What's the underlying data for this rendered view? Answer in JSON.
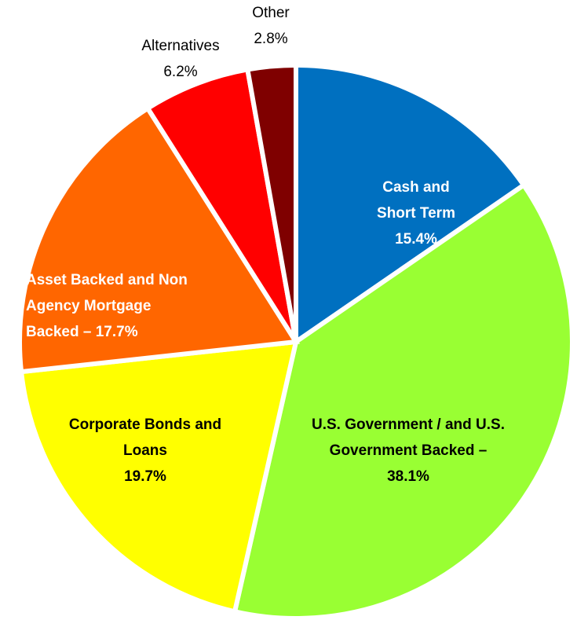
{
  "chart_data": {
    "type": "pie",
    "categories": [
      "Cash and Short Term",
      "U.S. Government / and U.S. Government Backed",
      "Corporate Bonds and Loans",
      "Asset Backed and Non Agency Mortgage Backed",
      "Alternatives",
      "Other"
    ],
    "values": [
      15.4,
      38.1,
      19.7,
      17.7,
      6.2,
      2.8
    ],
    "value_labels": [
      "15.4%",
      "– 38.1%",
      "19.7%",
      "– 17.7%",
      "6.2%",
      "2.8%"
    ],
    "colors": [
      "#0070c0",
      "#99ff33",
      "#ffff00",
      "#ff6600",
      "#ff0000",
      "#7f0000"
    ]
  }
}
